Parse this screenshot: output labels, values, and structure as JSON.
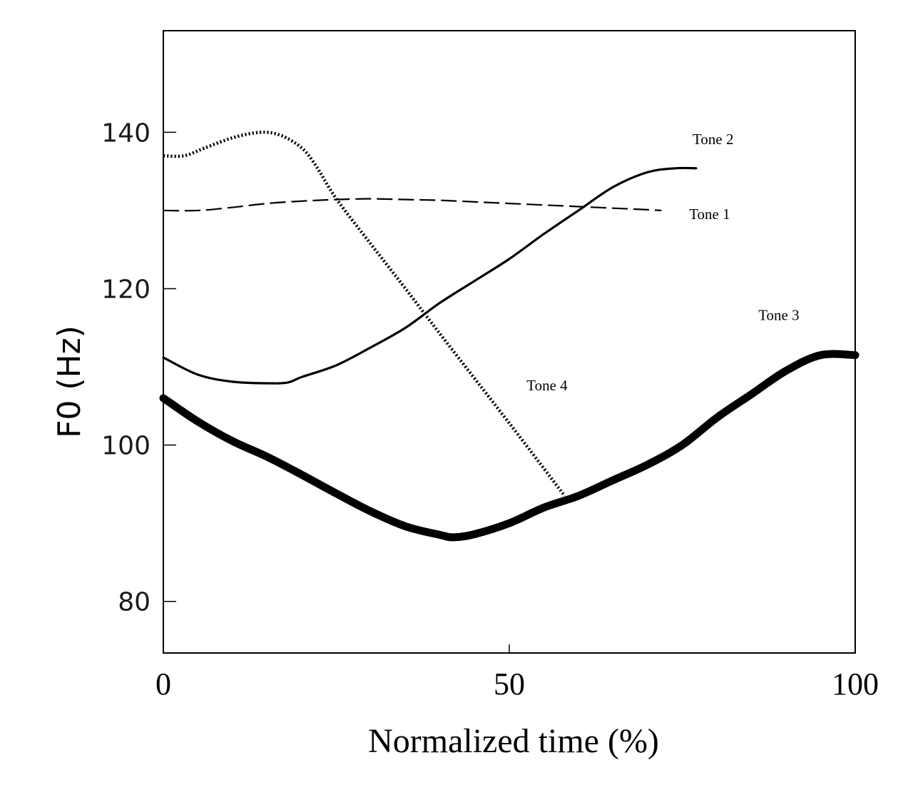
{
  "chart_data": {
    "type": "line",
    "title": "",
    "xlabel": "Normalized time (%)",
    "ylabel": "F0 (Hz)",
    "xlim": [
      0,
      100
    ],
    "ylim": [
      73.4,
      153
    ],
    "x_ticks": [
      0,
      50,
      100
    ],
    "y_ticks": [
      80,
      100,
      120,
      140
    ],
    "grid": false,
    "legend": "none (direct labels)",
    "series": [
      {
        "name": "Tone 1",
        "style": "dashed",
        "color": "#000000",
        "x": [
          0,
          5,
          10,
          15,
          20,
          25,
          30,
          35,
          40,
          45,
          50,
          55,
          60,
          65,
          70,
          72
        ],
        "y": [
          130.0,
          130.0,
          130.4,
          130.9,
          131.2,
          131.4,
          131.5,
          131.4,
          131.3,
          131.1,
          130.9,
          130.7,
          130.5,
          130.3,
          130.1,
          130.0
        ]
      },
      {
        "name": "Tone 2",
        "style": "solid",
        "color": "#000000",
        "x": [
          0,
          5,
          10,
          15,
          18,
          20,
          25,
          30,
          35,
          40,
          45,
          50,
          55,
          60,
          65,
          70,
          74,
          77
        ],
        "y": [
          111.2,
          109.0,
          108.1,
          107.9,
          108.0,
          108.7,
          110.2,
          112.5,
          115.0,
          118.2,
          121.0,
          123.8,
          127.0,
          130.0,
          133.0,
          134.9,
          135.4,
          135.4
        ]
      },
      {
        "name": "Tone 3",
        "style": "solid-thick",
        "color": "#000000",
        "x": [
          0,
          5,
          10,
          15,
          20,
          25,
          30,
          35,
          40,
          42,
          45,
          50,
          55,
          60,
          65,
          70,
          75,
          80,
          85,
          90,
          95,
          100
        ],
        "y": [
          106.0,
          103.0,
          100.5,
          98.5,
          96.2,
          93.8,
          91.5,
          89.6,
          88.5,
          88.2,
          88.6,
          90.0,
          92.0,
          93.5,
          95.5,
          97.5,
          100.0,
          103.5,
          106.5,
          109.5,
          111.5,
          111.5
        ]
      },
      {
        "name": "Tone 4",
        "style": "dotted",
        "color": "#000000",
        "x": [
          0,
          3,
          6,
          10,
          14,
          17,
          20,
          22,
          25,
          30,
          35,
          40,
          45,
          50,
          55,
          58
        ],
        "y": [
          137.0,
          137.0,
          138.0,
          139.3,
          140.0,
          139.6,
          138.0,
          135.8,
          131.5,
          125.7,
          120.0,
          114.2,
          108.5,
          102.8,
          97.0,
          93.5
        ]
      }
    ],
    "annotations": [
      {
        "text": "Tone 2",
        "x": 76.5,
        "y": 138.5
      },
      {
        "text": "Tone 1",
        "x": 76,
        "y": 128.9
      },
      {
        "text": "Tone 3",
        "x": 86,
        "y": 116.0
      },
      {
        "text": "Tone 4",
        "x": 52.5,
        "y": 107.0
      }
    ]
  }
}
